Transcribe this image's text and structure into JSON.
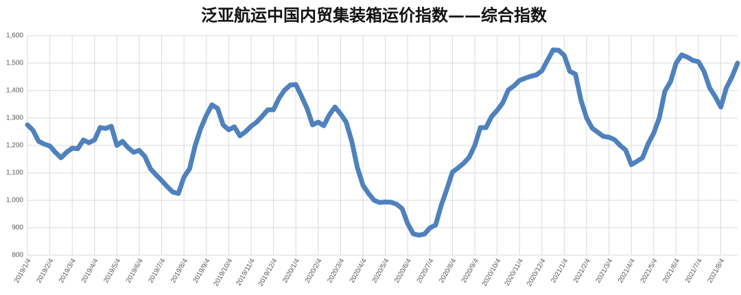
{
  "chart_data": {
    "type": "line",
    "title": "泛亚航运中国内贸集装箱运价指数——综合指数",
    "categories": [
      "2019/1/4",
      null,
      null,
      null,
      "2019/2/4",
      null,
      null,
      null,
      "2019/3/4",
      null,
      null,
      null,
      "2019/4/4",
      null,
      null,
      null,
      "2019/5/4",
      null,
      null,
      null,
      "2019/6/4",
      null,
      null,
      null,
      "2019/7/4",
      null,
      null,
      null,
      "2019/8/4",
      null,
      null,
      null,
      "2019/9/4",
      null,
      null,
      null,
      "2019/10/4",
      null,
      null,
      null,
      "2019/11/4",
      null,
      null,
      null,
      "2019/12/4",
      null,
      null,
      null,
      "2020/1/4",
      null,
      null,
      null,
      "2020/2/4",
      null,
      null,
      null,
      "2020/3/4",
      null,
      null,
      null,
      "2020/4/4",
      null,
      null,
      null,
      "2020/5/4",
      null,
      null,
      null,
      "2020/6/4",
      null,
      null,
      null,
      "2020/7/4",
      null,
      null,
      null,
      "2020/8/4",
      null,
      null,
      null,
      "2020/9/4",
      null,
      null,
      null,
      "2020/10/4",
      null,
      null,
      null,
      "2020/11/4",
      null,
      null,
      null,
      "2020/12/4",
      null,
      null,
      null,
      "2021/1/4",
      null,
      null,
      null,
      "2021/2/4",
      null,
      null,
      null,
      "2021/3/4",
      null,
      null,
      null,
      "2021/4/4",
      null,
      null,
      null,
      "2021/5/4",
      null,
      null,
      null,
      "2021/6/4",
      null,
      null,
      null,
      "2021/7/4",
      null,
      null,
      null,
      "2021/8/4",
      null,
      null,
      null
    ],
    "series": [
      {
        "name": "综合指数",
        "color": "#4f81bd",
        "values": [
          1275,
          1255,
          1215,
          1205,
          1198,
          1175,
          1155,
          1175,
          1190,
          1188,
          1220,
          1210,
          1220,
          1265,
          1262,
          1270,
          1200,
          1215,
          1192,
          1175,
          1182,
          1160,
          1115,
          1093,
          1072,
          1050,
          1030,
          1025,
          1085,
          1115,
          1200,
          1262,
          1310,
          1348,
          1335,
          1275,
          1257,
          1268,
          1235,
          1250,
          1270,
          1285,
          1307,
          1330,
          1330,
          1372,
          1402,
          1420,
          1422,
          1380,
          1335,
          1275,
          1285,
          1272,
          1312,
          1340,
          1315,
          1285,
          1215,
          1120,
          1055,
          1025,
          1000,
          992,
          994,
          993,
          986,
          970,
          915,
          878,
          873,
          877,
          900,
          910,
          982,
          1040,
          1103,
          1118,
          1135,
          1157,
          1200,
          1265,
          1265,
          1305,
          1328,
          1355,
          1402,
          1417,
          1437,
          1445,
          1452,
          1457,
          1472,
          1510,
          1548,
          1547,
          1528,
          1470,
          1460,
          1365,
          1300,
          1263,
          1248,
          1233,
          1230,
          1221,
          1200,
          1183,
          1130,
          1142,
          1155,
          1206,
          1245,
          1300,
          1398,
          1432,
          1500,
          1530,
          1522,
          1510,
          1505,
          1470,
          1410,
          1378,
          1340,
          1410,
          1450,
          1500
        ]
      }
    ],
    "ylim": [
      800,
      1600
    ],
    "yticks": [
      800,
      900,
      {
        "value": 1000,
        "label": "1,000"
      },
      {
        "value": 1100,
        "label": "1,100"
      },
      {
        "value": 1200,
        "label": "1,200"
      },
      {
        "value": 1300,
        "label": "1,300"
      },
      {
        "value": 1400,
        "label": "1,400"
      },
      {
        "value": 1500,
        "label": "1,500"
      },
      {
        "value": 1600,
        "label": "1,600"
      }
    ],
    "grid": true
  }
}
